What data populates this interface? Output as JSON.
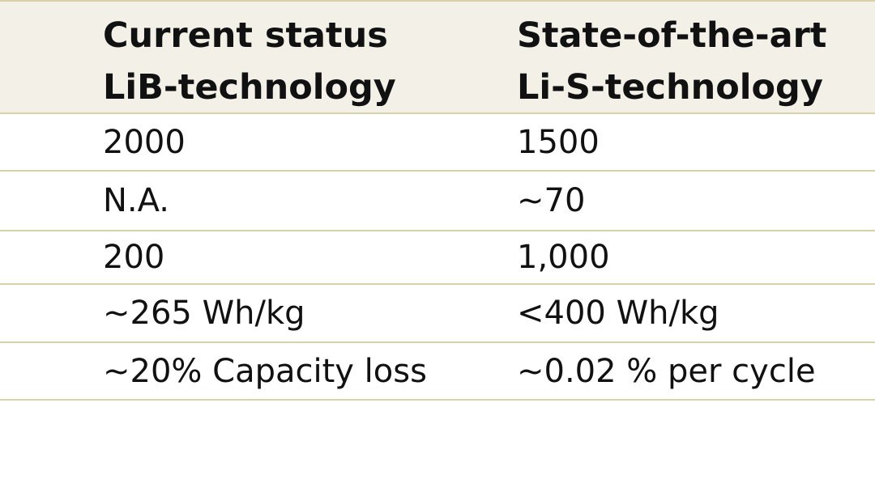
{
  "table": {
    "headers": [
      [
        "Current status",
        "LiB-technology"
      ],
      [
        "State-of-the-art",
        "Li-S-technology"
      ]
    ],
    "rows": [
      [
        "2000",
        "1500"
      ],
      [
        "N.A.",
        "~70"
      ],
      [
        "200",
        "1,000"
      ],
      [
        "~265 Wh/kg",
        "<400 Wh/kg"
      ],
      [
        "~20% Capacity loss",
        "~0.02 % per cycle"
      ]
    ]
  }
}
